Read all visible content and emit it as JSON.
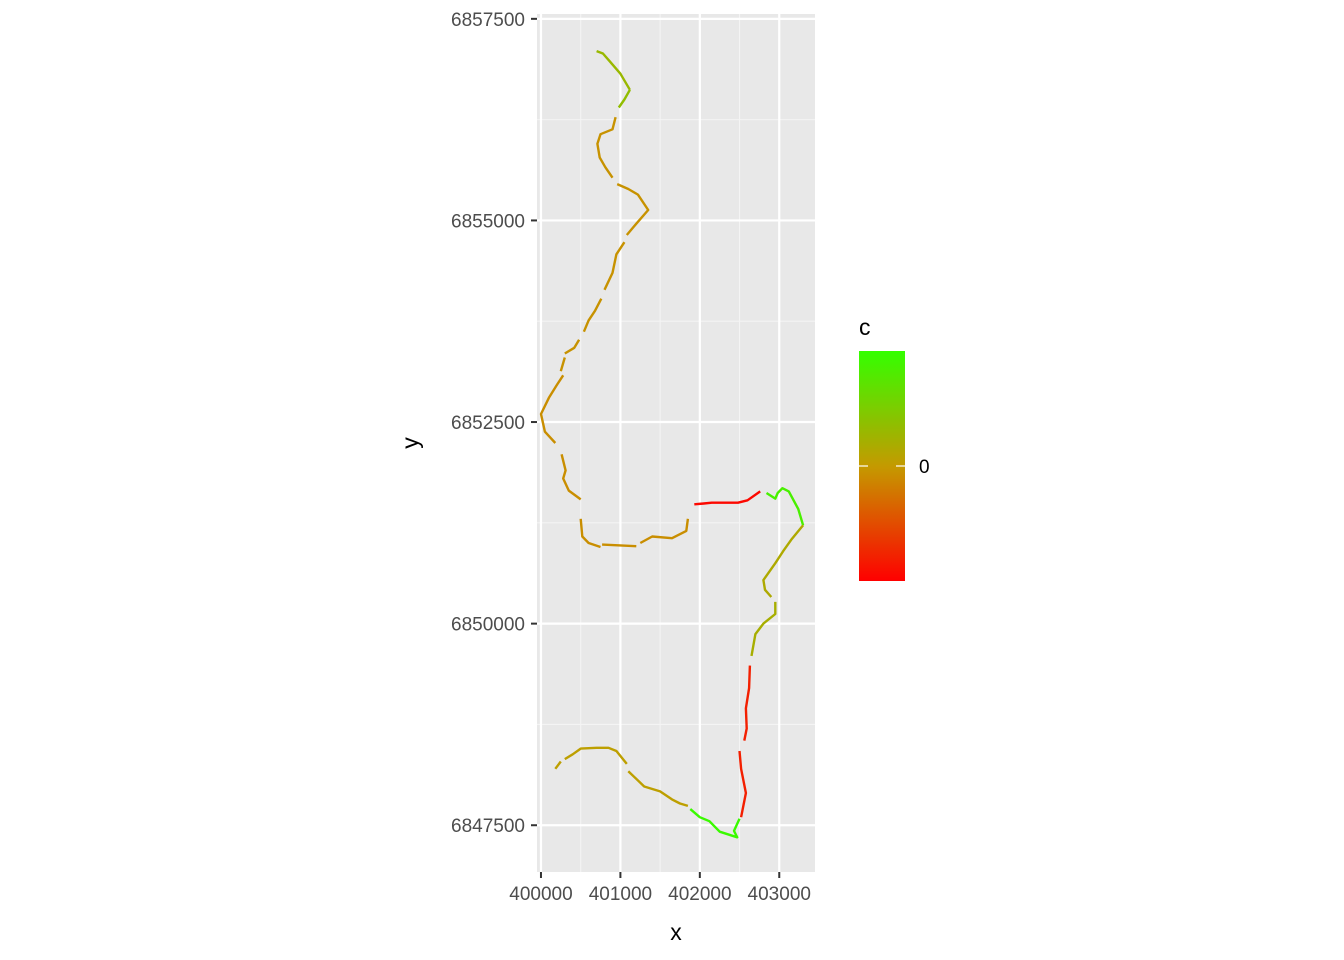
{
  "chart_data": {
    "type": "line",
    "title": "",
    "xlabel": "x",
    "ylabel": "y",
    "xlim": [
      399950,
      403450
    ],
    "ylim": [
      6846920,
      6857560
    ],
    "x_ticks": [
      400000,
      401000,
      402000,
      403000
    ],
    "x_tick_labels": [
      "400000",
      "401000",
      "402000",
      "403000"
    ],
    "y_ticks": [
      6847500,
      6850000,
      6852500,
      6855000,
      6857500
    ],
    "y_tick_labels": [
      "6847500",
      "6850000",
      "6852500",
      "6855000",
      "6857500"
    ],
    "grid": true,
    "legend": {
      "title": "c",
      "placement": "right",
      "labels": [
        "0"
      ],
      "colors": {
        "low": "#ff0000",
        "mid": "#c49a00",
        "high": "#33ff00"
      },
      "range": [
        -1,
        1
      ],
      "label_values": [
        0
      ]
    },
    "colors": {
      "panel_background": "#e8e8e8",
      "grid_major": "#ffffff",
      "grid_minor": "#f4f4f4"
    },
    "segments": [
      {
        "c": 0.3,
        "points": [
          [
            400700,
            6857100
          ],
          [
            400780,
            6857070
          ],
          [
            400860,
            6856980
          ],
          [
            401000,
            6856820
          ],
          [
            401120,
            6856620
          ]
        ]
      },
      {
        "c": 0.35,
        "points": [
          [
            401120,
            6856620
          ],
          [
            401050,
            6856500
          ],
          [
            400980,
            6856400
          ]
        ]
      },
      {
        "c": -0.05,
        "points": [
          [
            400940,
            6856280
          ],
          [
            400900,
            6856130
          ],
          [
            400750,
            6856070
          ],
          [
            400710,
            6855950
          ],
          [
            400740,
            6855780
          ],
          [
            400810,
            6855660
          ],
          [
            400900,
            6855530
          ]
        ]
      },
      {
        "c": -0.05,
        "points": [
          [
            400960,
            6855450
          ],
          [
            401100,
            6855390
          ],
          [
            401220,
            6855320
          ],
          [
            401350,
            6855130
          ],
          [
            401200,
            6854960
          ],
          [
            401080,
            6854820
          ]
        ]
      },
      {
        "c": -0.05,
        "points": [
          [
            401050,
            6854730
          ],
          [
            400950,
            6854580
          ],
          [
            400900,
            6854350
          ],
          [
            400800,
            6854140
          ]
        ]
      },
      {
        "c": -0.05,
        "points": [
          [
            400760,
            6854030
          ],
          [
            400680,
            6853880
          ],
          [
            400600,
            6853760
          ],
          [
            400540,
            6853620
          ]
        ]
      },
      {
        "c": -0.05,
        "points": [
          [
            400480,
            6853520
          ],
          [
            400420,
            6853420
          ],
          [
            400300,
            6853350
          ]
        ]
      },
      {
        "c": -0.05,
        "points": [
          [
            400300,
            6853300
          ],
          [
            400250,
            6853130
          ]
        ]
      },
      {
        "c": -0.08,
        "points": [
          [
            400280,
            6853080
          ],
          [
            400200,
            6852960
          ],
          [
            400100,
            6852800
          ],
          [
            400000,
            6852600
          ],
          [
            400050,
            6852380
          ],
          [
            400180,
            6852240
          ]
        ]
      },
      {
        "c": -0.08,
        "points": [
          [
            400260,
            6852100
          ],
          [
            400310,
            6851900
          ],
          [
            400280,
            6851800
          ],
          [
            400350,
            6851650
          ],
          [
            400500,
            6851540
          ]
        ]
      },
      {
        "c": -0.08,
        "points": [
          [
            400500,
            6851300
          ],
          [
            400520,
            6851080
          ],
          [
            400600,
            6851000
          ],
          [
            400750,
            6850950
          ]
        ]
      },
      {
        "c": -0.08,
        "points": [
          [
            400770,
            6850980
          ],
          [
            401000,
            6850970
          ],
          [
            401200,
            6850960
          ]
        ]
      },
      {
        "c": -0.08,
        "points": [
          [
            401250,
            6851000
          ],
          [
            401400,
            6851080
          ],
          [
            401650,
            6851060
          ],
          [
            401830,
            6851150
          ],
          [
            401850,
            6851300
          ]
        ]
      },
      {
        "c": -0.95,
        "points": [
          [
            401930,
            6851480
          ],
          [
            402050,
            6851490
          ],
          [
            402150,
            6851500
          ],
          [
            402300,
            6851500
          ],
          [
            402480,
            6851500
          ],
          [
            402600,
            6851530
          ],
          [
            402760,
            6851640
          ]
        ]
      },
      {
        "c": 0.85,
        "points": [
          [
            402840,
            6851620
          ],
          [
            402950,
            6851550
          ],
          [
            402980,
            6851620
          ],
          [
            403040,
            6851680
          ],
          [
            403120,
            6851640
          ],
          [
            403240,
            6851420
          ],
          [
            403300,
            6851220
          ]
        ]
      },
      {
        "c": 0.15,
        "points": [
          [
            403300,
            6851220
          ],
          [
            403150,
            6851040
          ],
          [
            403050,
            6850900
          ],
          [
            402950,
            6850750
          ],
          [
            402800,
            6850540
          ],
          [
            402820,
            6850420
          ],
          [
            402900,
            6850330
          ]
        ]
      },
      {
        "c": 0.2,
        "points": [
          [
            402950,
            6850270
          ],
          [
            402950,
            6850120
          ],
          [
            402800,
            6850000
          ],
          [
            402700,
            6849870
          ],
          [
            402650,
            6849600
          ]
        ]
      },
      {
        "c": -0.8,
        "points": [
          [
            402630,
            6849480
          ],
          [
            402620,
            6849200
          ],
          [
            402580,
            6848950
          ],
          [
            402590,
            6848700
          ],
          [
            402560,
            6848550
          ]
        ]
      },
      {
        "c": -0.8,
        "points": [
          [
            402500,
            6848420
          ],
          [
            402520,
            6848200
          ],
          [
            402580,
            6847900
          ],
          [
            402520,
            6847600
          ]
        ]
      },
      {
        "c": 0.95,
        "points": [
          [
            402500,
            6847580
          ],
          [
            402430,
            6847430
          ],
          [
            402470,
            6847350
          ],
          [
            402250,
            6847420
          ],
          [
            402120,
            6847550
          ],
          [
            402000,
            6847600
          ],
          [
            401880,
            6847700
          ]
        ]
      },
      {
        "c": 0.05,
        "points": [
          [
            401850,
            6847740
          ],
          [
            401750,
            6847770
          ],
          [
            401650,
            6847820
          ],
          [
            401500,
            6847920
          ],
          [
            401300,
            6847980
          ],
          [
            401100,
            6848170
          ]
        ]
      },
      {
        "c": 0.05,
        "points": [
          [
            401080,
            6848260
          ],
          [
            400950,
            6848420
          ],
          [
            400850,
            6848460
          ],
          [
            400700,
            6848460
          ],
          [
            400500,
            6848450
          ],
          [
            400400,
            6848380
          ],
          [
            400300,
            6848320
          ]
        ]
      },
      {
        "c": 0.05,
        "points": [
          [
            400250,
            6848290
          ],
          [
            400180,
            6848200
          ]
        ]
      }
    ]
  }
}
